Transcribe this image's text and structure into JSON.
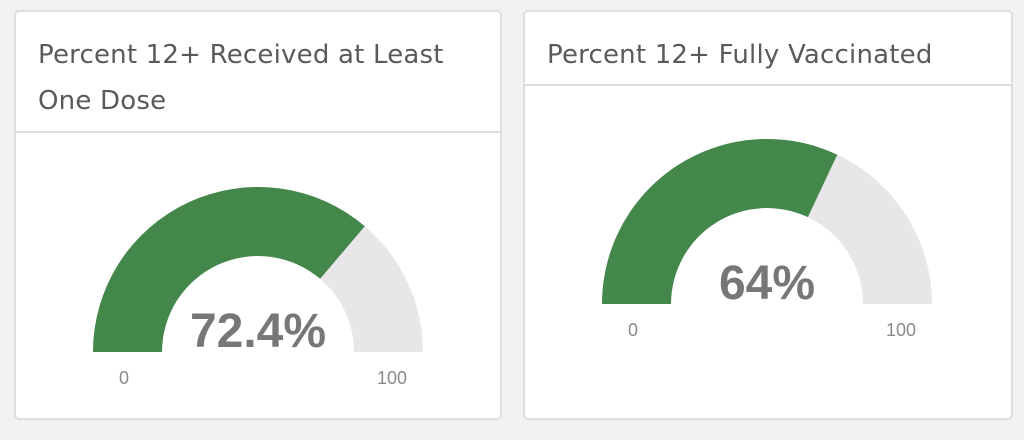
{
  "colors": {
    "fill": "#43874a",
    "track": "#e8e6e8",
    "value_text": "#777777",
    "tick_text": "#8a8a8a",
    "title_text": "#5a5a5a",
    "border": "#dedede",
    "panel_background": "#ffffff",
    "page_background": "#f1f1f1"
  },
  "chart_data": [
    {
      "type": "gauge",
      "title": "Percent 12+ Received at Least One Dose",
      "value": 72.4,
      "value_label": "72.4%",
      "min": 0,
      "max": 100,
      "min_label": "0",
      "max_label": "100"
    },
    {
      "type": "gauge",
      "title": "Percent 12+ Fully Vaccinated",
      "value": 64,
      "value_label": "64%",
      "min": 0,
      "max": 100,
      "min_label": "0",
      "max_label": "100"
    }
  ]
}
